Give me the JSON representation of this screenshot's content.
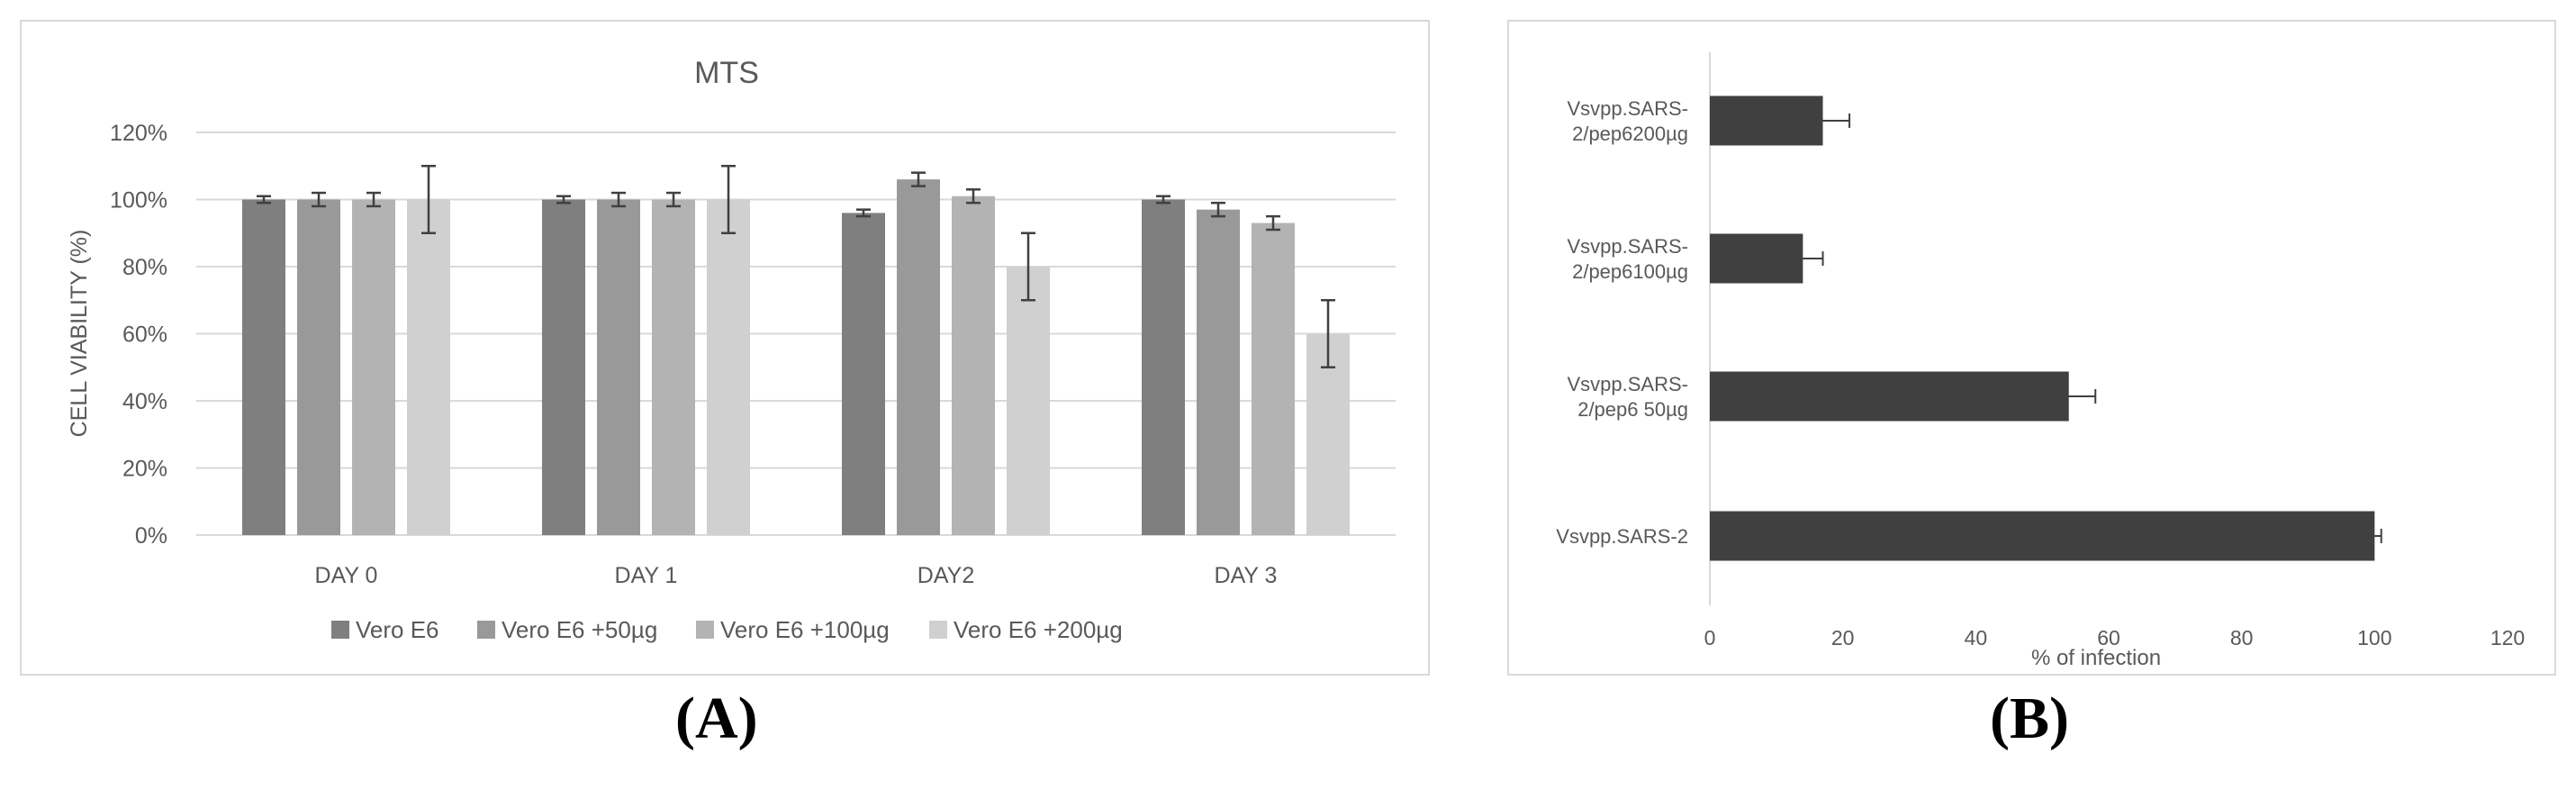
{
  "chart_data": [
    {
      "panel": "(A)",
      "type": "bar",
      "title": "MTS",
      "xlabel": "",
      "ylabel": "CELL VIABILITY (%)",
      "categories": [
        "DAY 0",
        "DAY 1",
        "DAY2",
        "DAY  3"
      ],
      "yticks": [
        "0%",
        "20%",
        "40%",
        "60%",
        "80%",
        "100%",
        "120%"
      ],
      "ylim": [
        0,
        120
      ],
      "grid": true,
      "legend_position": "bottom",
      "series": [
        {
          "name": "Vero E6",
          "values": [
            100,
            100,
            96,
            100
          ],
          "errors": [
            1,
            1,
            1,
            1
          ],
          "color": "#7f7f7f"
        },
        {
          "name": "Vero E6 +50µg",
          "values": [
            100,
            100,
            106,
            97
          ],
          "errors": [
            2,
            2,
            2,
            2
          ],
          "color": "#999999"
        },
        {
          "name": "Vero E6 +100µg",
          "values": [
            100,
            100,
            101,
            93
          ],
          "errors": [
            2,
            2,
            2,
            2
          ],
          "color": "#b3b3b3"
        },
        {
          "name": "Vero E6 +200µg",
          "values": [
            100,
            100,
            80,
            60
          ],
          "errors": [
            10,
            10,
            10,
            10
          ],
          "color": "#d0d0d0"
        }
      ]
    },
    {
      "panel": "(B)",
      "type": "bar",
      "orientation": "horizontal",
      "title": "",
      "xlabel": "% of infection",
      "ylabel": "",
      "categories": [
        [
          "Vsvpp.SARS-",
          "2/pep6200µg"
        ],
        [
          "Vsvpp.SARS-",
          "2/pep6100µg"
        ],
        [
          "Vsvpp.SARS-",
          "2/pep6 50µg"
        ],
        [
          "Vsvpp.SARS-2"
        ]
      ],
      "values": [
        17,
        14,
        54,
        100
      ],
      "errors": [
        4,
        3,
        4,
        1
      ],
      "xticks": [
        "0",
        "20",
        "40",
        "60",
        "80",
        "100",
        "120"
      ],
      "xlim": [
        0,
        120
      ],
      "grid": false,
      "color": "#404040"
    }
  ],
  "labels": {
    "panel_a": "(A)",
    "panel_b": "(B)"
  }
}
